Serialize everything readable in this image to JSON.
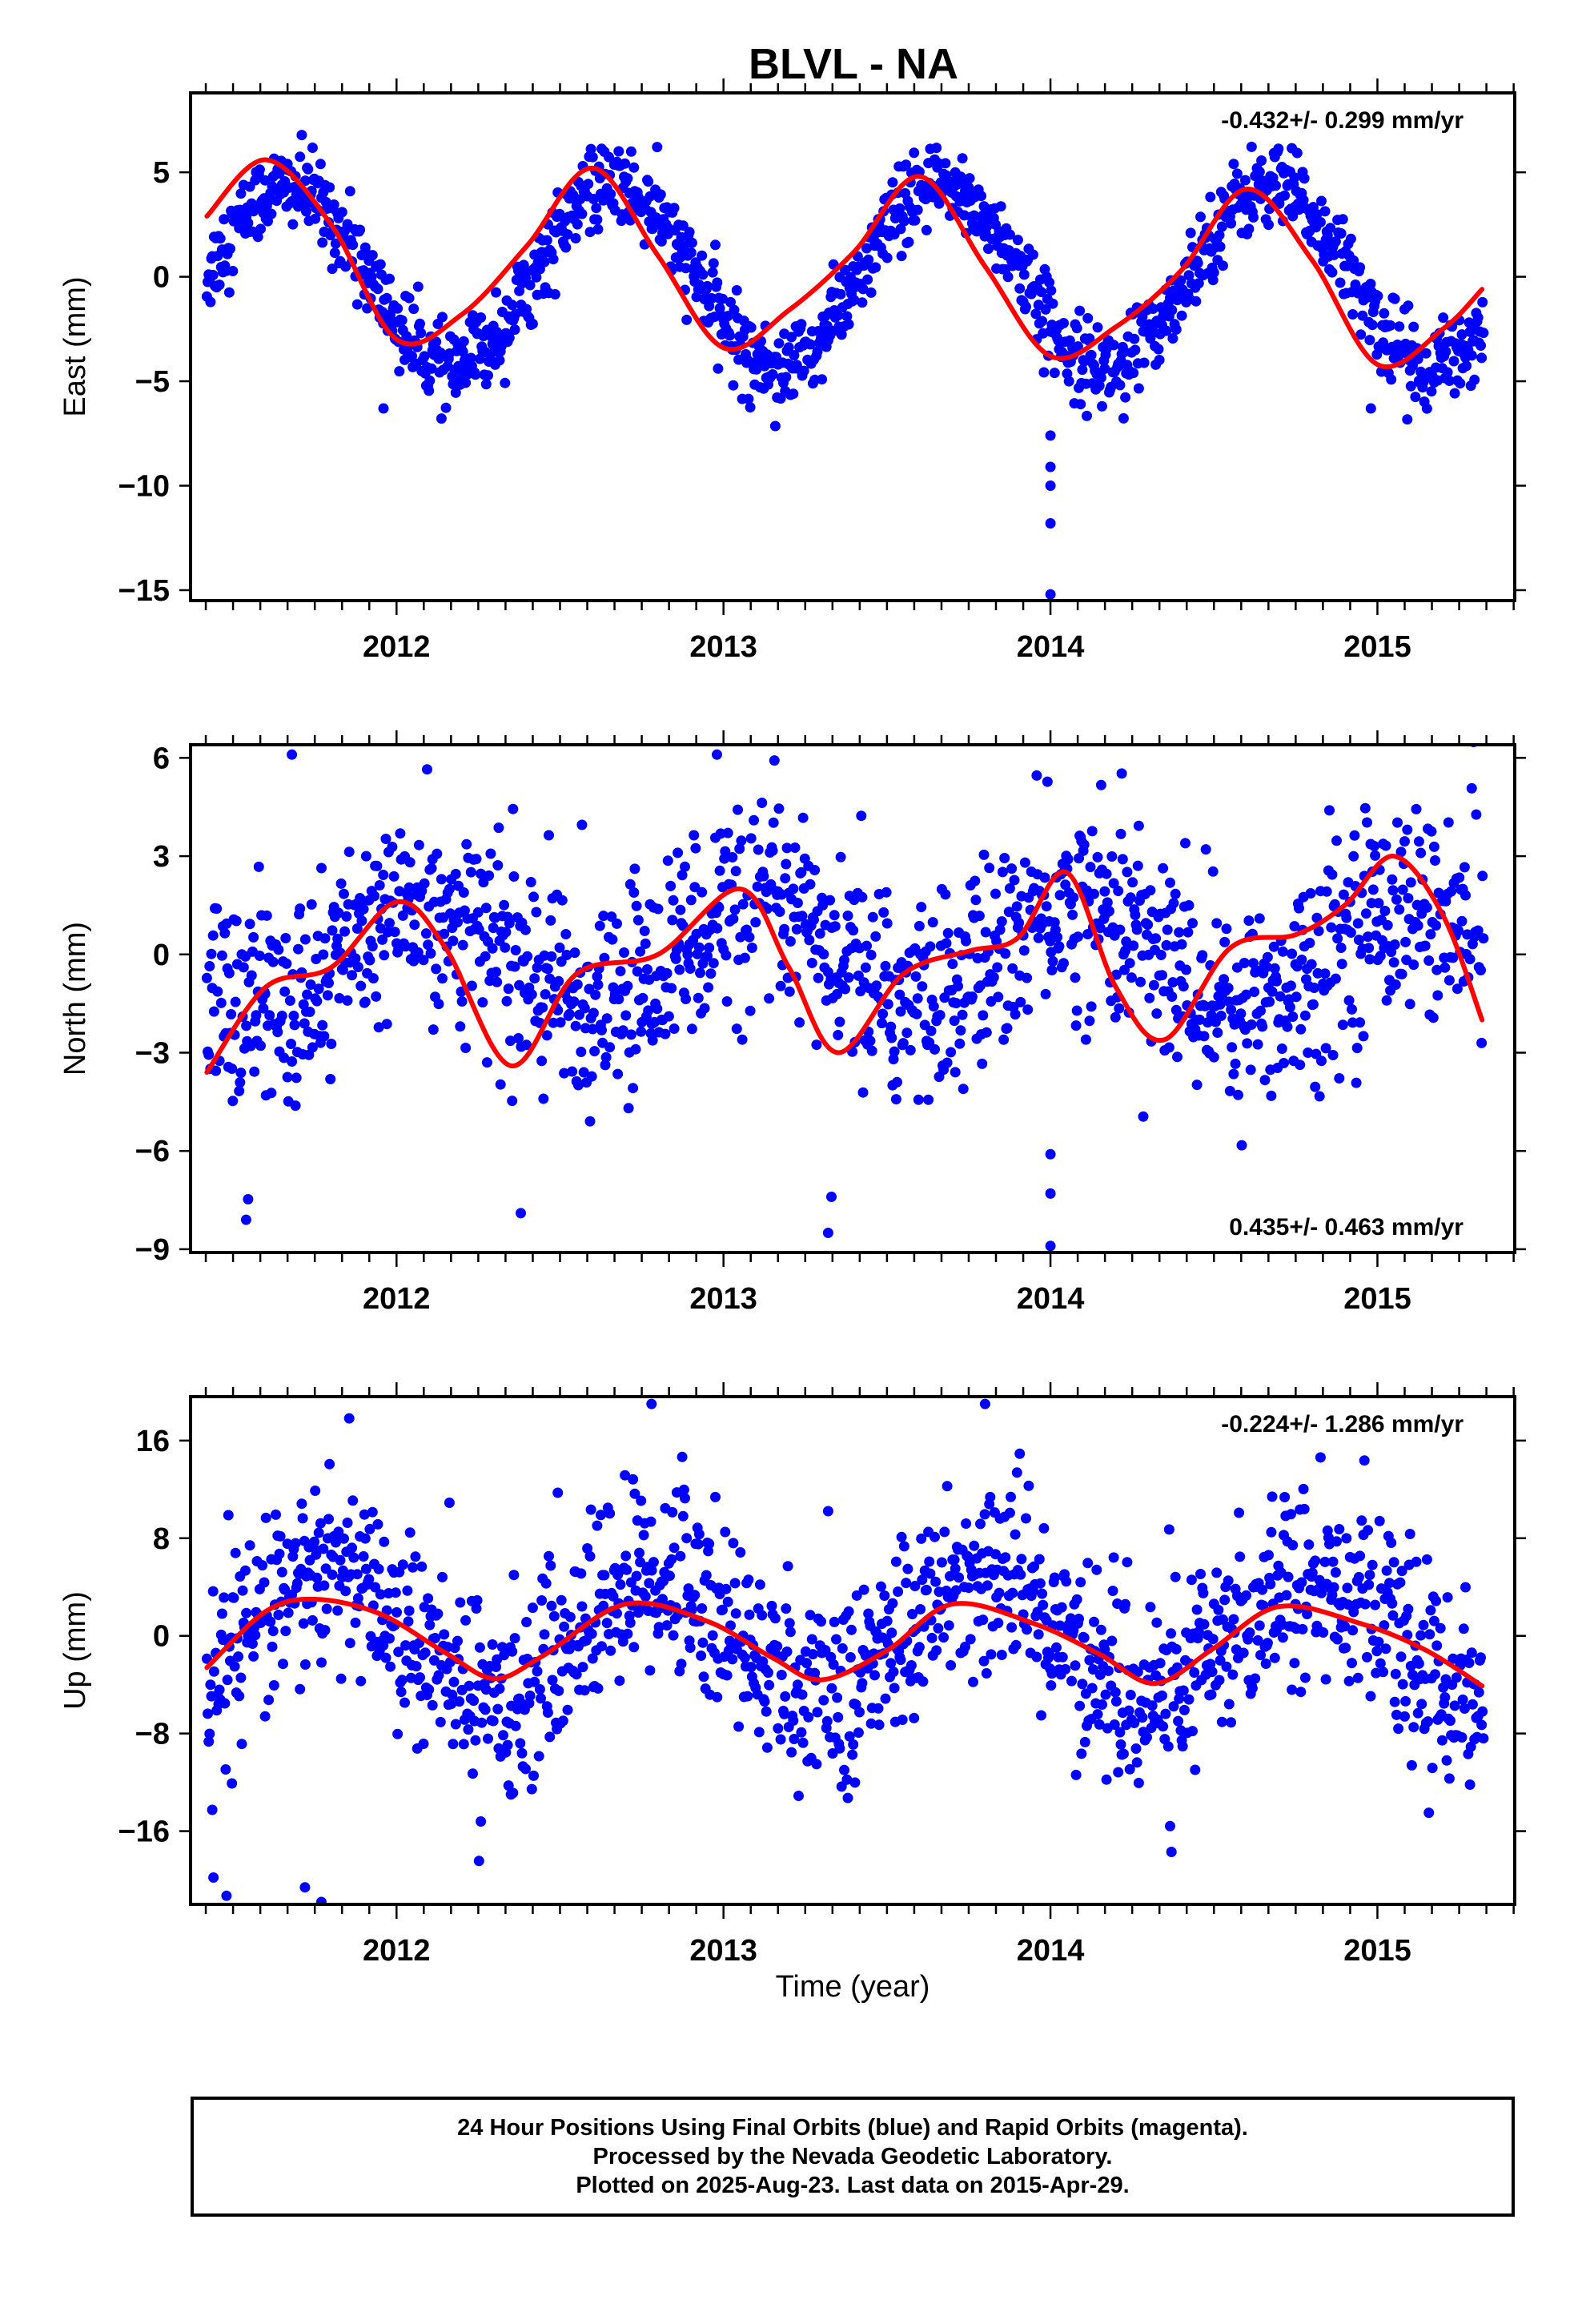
{
  "title": "BLVL - NA",
  "colors": {
    "points": "#0000ff",
    "fit": "#ff0000",
    "frame": "#000000"
  },
  "x_axis": {
    "label": "Time (year)",
    "ticks": [
      2012,
      2013,
      2014,
      2015
    ],
    "range": [
      2011.37,
      2015.42
    ]
  },
  "chart_data": [
    {
      "type": "scatter",
      "component": "East",
      "ylabel": "East (mm)",
      "yticks": [
        5,
        0,
        -5,
        -10,
        -15
      ],
      "ylim": [
        -15.5,
        8.8
      ],
      "rate_text": "-0.432+/- 0.299 mm/yr",
      "rate_position": "top-right",
      "series": [
        {
          "name": "Final Orbits",
          "color": "#0000ff",
          "kind": "daily positions, 24 hour",
          "mean": 0,
          "seasonal_amplitude": 4.3,
          "peak_month": 8.0,
          "scatter_sd": 1.0,
          "outliers": [
            [
              2014.0,
              -7.6
            ],
            [
              2014.0,
              -9.1
            ],
            [
              2014.0,
              -10.0
            ],
            [
              2014.0,
              -11.8
            ],
            [
              2014.0,
              -15.2
            ],
            [
              2011.96,
              -6.3
            ],
            [
              2014.98,
              -6.3
            ]
          ]
        },
        {
          "name": "fit",
          "x": [
            2011.42,
            2011.6,
            2011.8,
            2012.0,
            2012.2,
            2012.4,
            2012.6,
            2012.8,
            2013.0,
            2013.2,
            2013.4,
            2013.6,
            2013.8,
            2014.0,
            2014.2,
            2014.4,
            2014.6,
            2014.8,
            2015.0,
            2015.2,
            2015.32
          ],
          "y": [
            2.9,
            5.6,
            2.5,
            -3.0,
            -1.8,
            1.5,
            5.2,
            1.0,
            -3.4,
            -1.6,
            1.2,
            4.8,
            0.5,
            -3.8,
            -2.4,
            0.3,
            4.2,
            0.8,
            -4.2,
            -2.5,
            -0.6
          ]
        }
      ]
    },
    {
      "type": "scatter",
      "component": "North",
      "ylabel": "North (mm)",
      "yticks": [
        6,
        3,
        0,
        -3,
        -6,
        -9
      ],
      "ylim": [
        -9.1,
        6.4
      ],
      "rate_text": "0.435+/- 0.463 mm/yr",
      "rate_position": "bottom-right",
      "series": [
        {
          "name": "Final Orbits",
          "color": "#0000ff",
          "kind": "daily positions, 24 hour",
          "mean": 0,
          "seasonal_amplitude": 1.5,
          "peak_month": 1.0,
          "scatter_sd": 1.6,
          "outliers": [
            [
              2011.54,
              -8.1
            ],
            [
              2012.38,
              -7.9
            ],
            [
              2013.32,
              -8.5
            ],
            [
              2013.33,
              -7.4
            ],
            [
              2014.0,
              -8.9
            ],
            [
              2014.0,
              -6.1
            ],
            [
              2014.0,
              -7.3
            ],
            [
              2011.68,
              6.1
            ],
            [
              2012.98,
              6.1
            ]
          ]
        },
        {
          "name": "fit",
          "x": [
            2011.42,
            2011.6,
            2011.8,
            2012.0,
            2012.15,
            2012.35,
            2012.55,
            2012.8,
            2013.05,
            2013.2,
            2013.35,
            2013.55,
            2013.75,
            2013.9,
            2014.05,
            2014.2,
            2014.35,
            2014.55,
            2014.75,
            2014.9,
            2015.05,
            2015.2,
            2015.32
          ],
          "y": [
            -3.6,
            -1.0,
            -0.4,
            1.6,
            0.2,
            -3.4,
            -0.6,
            0.0,
            2.0,
            -0.4,
            -3.0,
            -0.6,
            0.1,
            0.5,
            2.5,
            -1.0,
            -2.6,
            0.2,
            0.6,
            1.5,
            3.0,
            1.2,
            -2.0
          ]
        }
      ]
    },
    {
      "type": "scatter",
      "component": "Up",
      "ylabel": "Up (mm)",
      "yticks": [
        16,
        8,
        0,
        -8,
        -16
      ],
      "ylim": [
        -22,
        19.6
      ],
      "rate_text": "-0.224+/- 1.286 mm/yr",
      "rate_position": "top-right",
      "series": [
        {
          "name": "Final Orbits",
          "color": "#0000ff",
          "kind": "daily positions, 24 hour",
          "mean": 0,
          "seasonal_amplitude": 5.0,
          "peak_month": 9.5,
          "scatter_sd": 4.0,
          "outliers": [
            [
              2011.44,
              -19.8
            ],
            [
              2011.48,
              -21.3
            ],
            [
              2011.72,
              -20.6
            ],
            [
              2011.77,
              -21.8
            ],
            [
              2012.35,
              -13.0
            ],
            [
              2014.37,
              -17.7
            ],
            [
              2012.78,
              19.0
            ],
            [
              2013.8,
              19.0
            ]
          ]
        },
        {
          "name": "fit",
          "x": [
            2011.42,
            2011.6,
            2011.75,
            2011.95,
            2012.15,
            2012.3,
            2012.45,
            2012.7,
            2012.95,
            2013.15,
            2013.3,
            2013.5,
            2013.7,
            2013.95,
            2014.15,
            2014.32,
            2014.5,
            2014.7,
            2014.95,
            2015.15,
            2015.32
          ],
          "y": [
            -2.6,
            2.0,
            3.0,
            1.8,
            -1.4,
            -3.5,
            -1.6,
            2.6,
            1.2,
            -1.8,
            -3.6,
            -1.2,
            2.6,
            1.0,
            -1.5,
            -3.9,
            -1.0,
            2.4,
            1.0,
            -1.2,
            -4.1
          ]
        }
      ]
    }
  ],
  "footer": {
    "line1": "24 Hour Positions Using Final Orbits (blue) and Rapid Orbits (magenta).",
    "line2": "Processed by the Nevada Geodetic Laboratory.",
    "line3": "Plotted on 2025-Aug-23. Last data on 2015-Apr-29."
  }
}
